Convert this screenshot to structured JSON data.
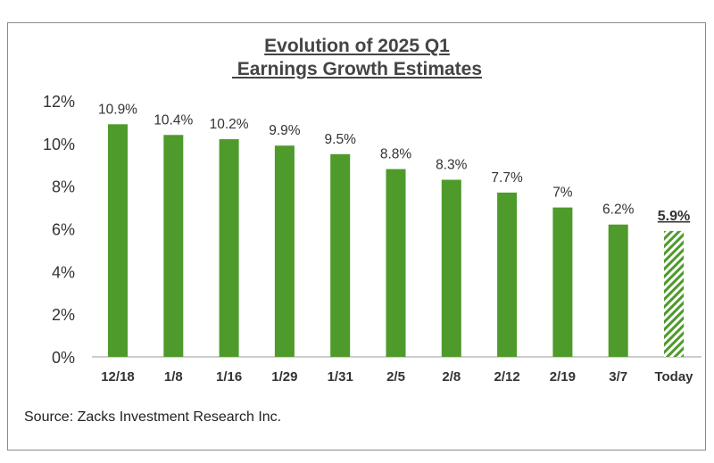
{
  "chart_data": {
    "type": "bar",
    "title_line1": "Evolution of 2025 Q1",
    "title_line2": " Earnings Growth Estimates",
    "categories": [
      "12/18",
      "1/8",
      "1/16",
      "1/29",
      "1/31",
      "2/5",
      "2/8",
      "2/12",
      "2/19",
      "3/7",
      "Today"
    ],
    "values": [
      10.9,
      10.4,
      10.2,
      9.9,
      9.5,
      8.8,
      8.3,
      7.7,
      7.0,
      6.2,
      5.9
    ],
    "data_labels": [
      "10.9%",
      "10.4%",
      "10.2%",
      "9.9%",
      "9.5%",
      "8.8%",
      "8.3%",
      "7.7%",
      "7%",
      "6.2%",
      "5.9%"
    ],
    "highlight_last": true,
    "yticks": [
      "0%",
      "2%",
      "4%",
      "6%",
      "8%",
      "10%",
      "12%"
    ],
    "ylim": [
      0,
      12
    ],
    "xlabel": "",
    "ylabel": "",
    "grid": false,
    "color": "#4e9a2b",
    "source": "Source: Zacks Investment Research Inc."
  }
}
